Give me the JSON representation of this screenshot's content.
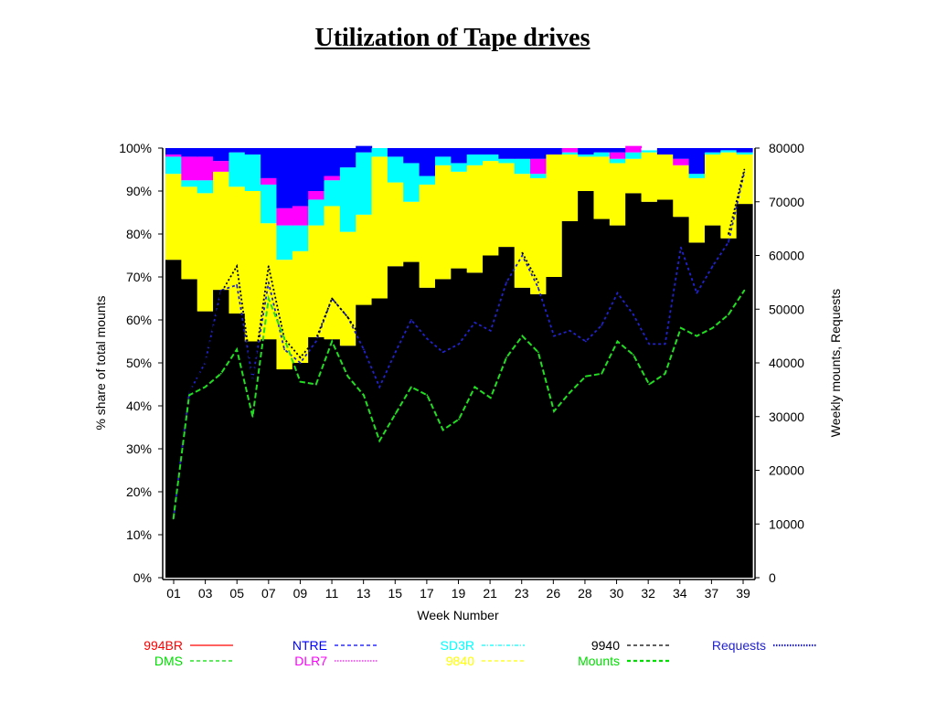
{
  "title": "Utilization of Tape drives",
  "chart_data": {
    "type": "area",
    "title": "Utilization of Tape drives",
    "xlabel": "Week Number",
    "ylabel_left": "% share of total mounts",
    "ylabel_right": "Weekly mounts, Requests",
    "ylim_left": [
      0,
      100
    ],
    "ylim_right": [
      0,
      80000
    ],
    "yticks_left": [
      "0%",
      "10%",
      "20%",
      "30%",
      "40%",
      "50%",
      "60%",
      "70%",
      "80%",
      "90%",
      "100%"
    ],
    "yticks_right": [
      "0",
      "10000",
      "20000",
      "30000",
      "40000",
      "50000",
      "60000",
      "70000",
      "80000"
    ],
    "xtick_labels": [
      "01",
      "03",
      "05",
      "07",
      "09",
      "11",
      "13",
      "15",
      "17",
      "19",
      "21",
      "23",
      "26",
      "28",
      "30",
      "32",
      "34",
      "37",
      "39"
    ],
    "num_weeks": 37,
    "stack_series": [
      {
        "name": "9940",
        "color": "#000000",
        "values": [
          74,
          69.5,
          62,
          67,
          61.5,
          55,
          55.5,
          48.5,
          50,
          56,
          55.5,
          54,
          63.5,
          65,
          72.5,
          73.5,
          67.5,
          69.5,
          72,
          71,
          75,
          77,
          67.5,
          66,
          70,
          83,
          90,
          83.5,
          82,
          89.5,
          87.5,
          88,
          84,
          78,
          82,
          79,
          87
        ]
      },
      {
        "name": "9840",
        "color": "#ffff00",
        "values": [
          20,
          21.5,
          27.5,
          27.5,
          29.5,
          35,
          27,
          25.5,
          26,
          26,
          31,
          26.5,
          21,
          33,
          19.5,
          14,
          24,
          26.5,
          22.5,
          25,
          22,
          19.5,
          26.5,
          27,
          28.5,
          15.5,
          8,
          14.5,
          14.5,
          8,
          11.5,
          10.5,
          12,
          15,
          16.5,
          20,
          11.5
        ]
      },
      {
        "name": "SD3R",
        "color": "#00ffff",
        "values": [
          4,
          1.5,
          3,
          0,
          8,
          8.5,
          9,
          8,
          6,
          6,
          6,
          15,
          14.5,
          2,
          6,
          9,
          2,
          2,
          2,
          2.5,
          1.5,
          1,
          3.5,
          1,
          0,
          0.5,
          0.5,
          1,
          1,
          1.5,
          0.5,
          0,
          0,
          1,
          0.5,
          0.5,
          0.5
        ]
      },
      {
        "name": "DLR7",
        "color": "#ff00ff",
        "values": [
          0.5,
          5.5,
          5.5,
          2.5,
          0,
          0,
          1.5,
          4,
          4.5,
          2,
          1,
          0,
          0,
          0,
          0,
          0,
          0,
          0,
          0,
          0,
          0,
          0,
          0,
          3.5,
          0,
          1,
          0,
          0,
          1.5,
          1.5,
          0,
          0,
          1.5,
          0,
          0,
          0,
          0
        ]
      },
      {
        "name": "NTRE",
        "color": "#0000ff",
        "values": [
          1.5,
          2,
          2,
          3,
          1,
          1.5,
          7,
          14,
          13.5,
          10,
          6.5,
          4.5,
          1.5,
          0,
          2,
          3.5,
          6.5,
          2,
          3.5,
          1.5,
          1.5,
          2.5,
          2.5,
          2.5,
          1.5,
          0,
          1.5,
          1,
          1,
          0,
          0,
          1.5,
          2.5,
          6,
          1,
          0.5,
          1
        ]
      },
      {
        "name": "DMS",
        "color": "#00cc00",
        "values": [
          0,
          0,
          0,
          0,
          0,
          0,
          0,
          0,
          0,
          0,
          0,
          0,
          0,
          0,
          0,
          0,
          0,
          0,
          0,
          0,
          0,
          0,
          0,
          0,
          0,
          0,
          0,
          0,
          0,
          0,
          0,
          0,
          0,
          0,
          0,
          0,
          0
        ]
      },
      {
        "name": "994BR",
        "color": "#ff0000",
        "values": [
          0,
          0,
          0,
          0,
          0,
          0,
          0,
          0,
          0,
          0,
          0,
          0,
          0,
          0,
          0,
          0,
          0,
          0,
          0,
          0,
          0,
          0,
          0,
          0,
          0,
          0,
          0,
          0,
          0,
          0,
          0,
          0,
          0,
          0,
          0,
          0,
          0
        ]
      }
    ],
    "line_series": [
      {
        "name": "Requests",
        "color": "#2222cc",
        "dash": "3,3",
        "values": [
          11000,
          34500,
          40000,
          53500,
          54500,
          37000,
          55000,
          42500,
          40000,
          44000,
          52000,
          48500,
          42500,
          35500,
          42000,
          48000,
          44500,
          42000,
          43500,
          47500,
          46000,
          55000,
          60000,
          54000,
          45000,
          46000,
          44000,
          47000,
          53000,
          49000,
          43500,
          43500,
          61500,
          53000,
          58000,
          62500,
          75500
        ]
      },
      {
        "name": "9940",
        "color": "#000000",
        "dash": "2,2.5",
        "values": [
          11000,
          34500,
          40000,
          53000,
          58000,
          37000,
          58000,
          44500,
          41000,
          44500,
          52000,
          48500,
          44000,
          null,
          null,
          null,
          null,
          null,
          null,
          null,
          null,
          null,
          60500,
          55000,
          null,
          null,
          null,
          null,
          null,
          null,
          null,
          null,
          null,
          null,
          null,
          64000,
          76000
        ]
      },
      {
        "name": "Mounts",
        "color": "#22dd22",
        "dash": "6,3",
        "values": [
          11000,
          34000,
          35500,
          38000,
          42500,
          30000,
          52000,
          44500,
          36500,
          36000,
          44000,
          37500,
          34000,
          25500,
          30500,
          35500,
          34000,
          27500,
          29500,
          35500,
          33500,
          41000,
          45000,
          42000,
          31000,
          34500,
          37500,
          38000,
          44000,
          41500,
          36000,
          38000,
          46500,
          45000,
          46500,
          49000,
          53500
        ]
      }
    ],
    "legend": [
      {
        "label": "994BR",
        "color": "#ff0000",
        "style": "solid"
      },
      {
        "label": "NTRE",
        "color": "#0000ff",
        "style": "dashed"
      },
      {
        "label": "SD3R",
        "color": "#00ffff",
        "style": "dashdot"
      },
      {
        "label": "9940",
        "color": "#000000",
        "style": "dashed"
      },
      {
        "label": "Requests",
        "color": "#2222cc",
        "style": "dotted"
      },
      {
        "label": "DMS",
        "color": "#00dd00",
        "style": "dashed"
      },
      {
        "label": "DLR7",
        "color": "#ff00ff",
        "style": "dotted"
      },
      {
        "label": "9840",
        "color": "#ffff00",
        "style": "dashed"
      },
      {
        "label": "Mounts",
        "color": "#00dd00",
        "style": "dashed"
      }
    ]
  }
}
